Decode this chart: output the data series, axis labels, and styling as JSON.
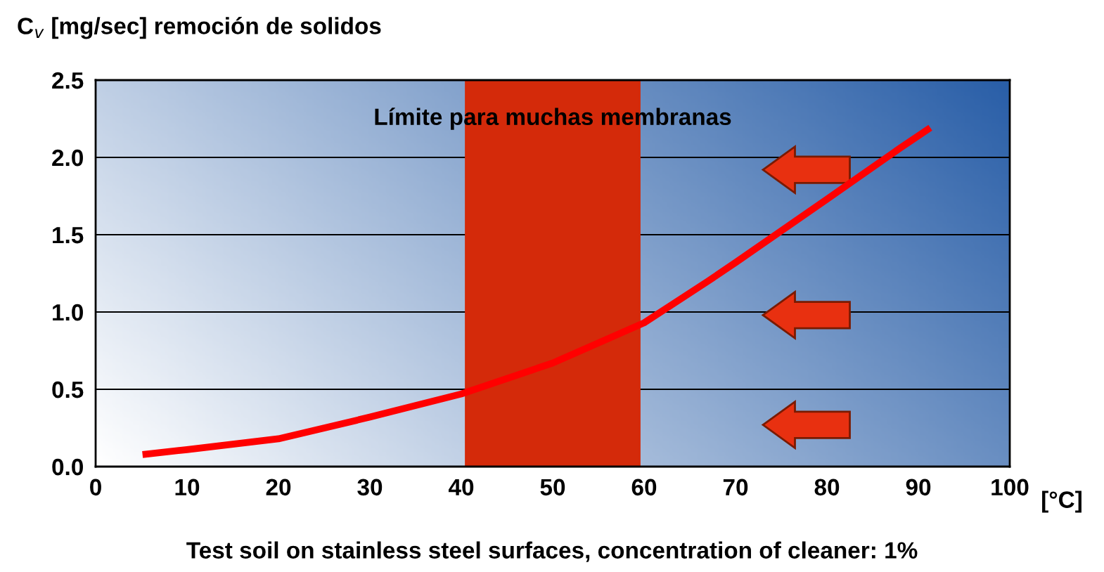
{
  "chart_data": {
    "type": "line",
    "title": "C$_{v}$ [mg/sec] remoción de solidos",
    "xlabel": "[°C]",
    "annotations": [
      "Test soil on stainless steel surfaces, concentration of cleaner: 1%"
    ],
    "x": [
      5.5,
      10,
      20,
      30,
      40,
      50,
      60,
      67,
      70,
      80,
      88,
      91
    ],
    "series": [
      {
        "color": "#ff0000",
        "values": [
          0.08,
          0.11,
          0.18,
          0.32,
          0.47,
          0.67,
          0.93,
          1.2,
          1.32,
          1.73,
          2.06,
          2.18
        ]
      }
    ],
    "bands": [
      {
        "axis": "x",
        "from": 40.5,
        "to": 59.5,
        "label": "Límite para muchas membranas",
        "color": "#d42a0a"
      }
    ],
    "xlim": [
      0,
      100
    ],
    "xticks": [
      0,
      10,
      20,
      30,
      40,
      50,
      60,
      70,
      80,
      90,
      100
    ],
    "ylim": [
      0,
      2.5
    ],
    "yticks": [
      {
        "value": 0,
        "label": "0.0"
      },
      0.5,
      {
        "value": 1,
        "label": "1.0"
      },
      1.5,
      {
        "value": 2,
        "label": "2.0"
      },
      2.5
    ],
    "grid": "y",
    "marker": "none",
    "line_style": "solid"
  }
}
